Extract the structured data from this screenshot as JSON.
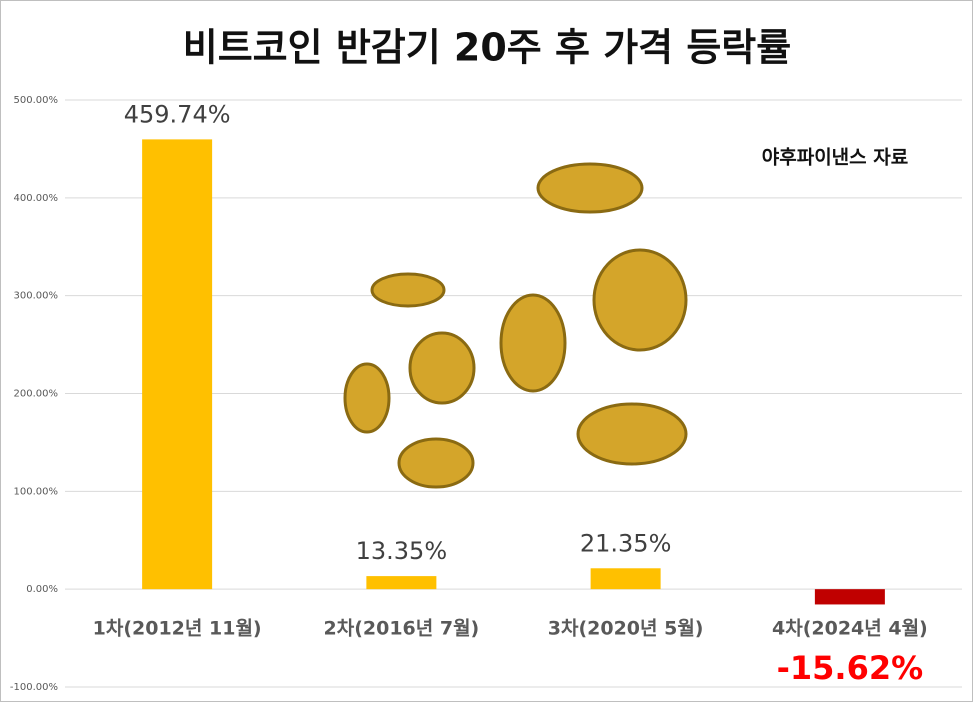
{
  "chart_data": {
    "type": "bar",
    "title": "비트코인 반감기 20주 후 가격 등락률",
    "annotation": "야후파이낸스 자료",
    "categories": [
      "1차(2012년 11월)",
      "2차(2016년 7월)",
      "3차(2020년 5월)",
      "4차(2024년 4월)"
    ],
    "values": [
      459.74,
      13.35,
      21.35,
      -15.62
    ],
    "value_labels": [
      "459.74%",
      "13.35%",
      "21.35%",
      "-15.62%"
    ],
    "colors": [
      "#FFC000",
      "#FFC000",
      "#FFC000",
      "#C00000"
    ],
    "ylim": [
      -100,
      500
    ],
    "yticks": [
      {
        "value": -100,
        "label": "-100.00%"
      },
      {
        "value": 0,
        "label": "0.00%"
      },
      {
        "value": 100,
        "label": "100.00%"
      },
      {
        "value": 200,
        "label": "200.00%"
      },
      {
        "value": 300,
        "label": "300.00%"
      },
      {
        "value": 400,
        "label": "400.00%"
      },
      {
        "value": 500,
        "label": "500.00%"
      }
    ],
    "grid": true
  }
}
